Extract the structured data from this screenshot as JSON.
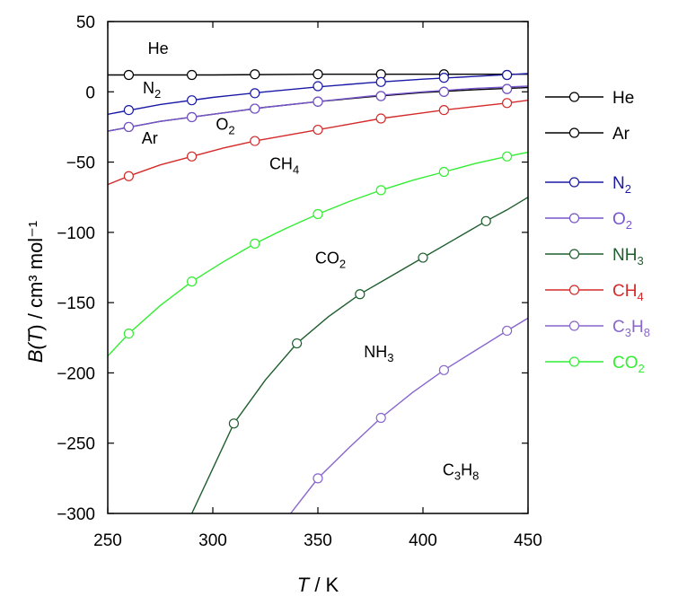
{
  "chart_data": {
    "type": "line",
    "xlabel": {
      "italic": "T",
      "rest": " / K"
    },
    "ylabel": {
      "italic_b": "B(",
      "italic_t": "T",
      "rest": ") / cm³ mol⁻¹"
    },
    "xlim": [
      250,
      450
    ],
    "ylim": [
      -300,
      50
    ],
    "xticks": [
      250,
      300,
      350,
      400,
      450
    ],
    "yticks": [
      -300,
      -250,
      -200,
      -150,
      -100,
      -50,
      0,
      50
    ],
    "grid": false,
    "legend_position": "right",
    "series": [
      {
        "key": "He",
        "name": "He",
        "color": "#000000",
        "x": [
          260,
          290,
          320,
          350,
          380,
          410,
          440
        ],
        "y": [
          12,
          12,
          12.5,
          12.5,
          12.5,
          12.5,
          12
        ]
      },
      {
        "key": "Ar",
        "name": "Ar",
        "color": "#000000",
        "x": [
          260,
          290,
          320,
          350,
          380,
          410,
          440
        ],
        "y": [
          -25,
          -18,
          -12,
          -7,
          -3,
          0,
          2
        ]
      },
      {
        "key": "N2",
        "name": "N",
        "sub": "2",
        "color": "#1a1aa6",
        "x": [
          260,
          290,
          320,
          350,
          380,
          410,
          440
        ],
        "y": [
          -13,
          -6,
          -1,
          4,
          7,
          10,
          12
        ]
      },
      {
        "key": "O2",
        "name": "O",
        "sub": "2",
        "color": "#7755cc",
        "x": [
          260,
          290,
          320,
          350,
          380,
          410,
          440
        ],
        "y": [
          -25,
          -18,
          -12,
          -7,
          -3,
          0,
          2
        ]
      },
      {
        "key": "NH3",
        "name": "NH",
        "sub": "3",
        "color": "#1e5e2e",
        "x": [
          310,
          340,
          370,
          400,
          430
        ],
        "y": [
          -236,
          -179,
          -144,
          -118,
          -92
        ]
      },
      {
        "key": "CH4",
        "name": "CH",
        "sub": "4",
        "color": "#d42a2a",
        "x": [
          260,
          290,
          320,
          350,
          380,
          410,
          440
        ],
        "y": [
          -60,
          -46,
          -35,
          -27,
          -19,
          -13,
          -8
        ]
      },
      {
        "key": "C3H8",
        "name": "C",
        "sub": "3",
        "name2": "H",
        "sub2": "8",
        "color": "#8866cc",
        "x": [
          350,
          380,
          410,
          440
        ],
        "y": [
          -275,
          -232,
          -198,
          -170
        ]
      },
      {
        "key": "CO2",
        "name": "CO",
        "sub": "2",
        "color": "#33ee33",
        "x": [
          260,
          290,
          320,
          350,
          380,
          410,
          440
        ],
        "y": [
          -172,
          -135,
          -108,
          -87,
          -70,
          -57,
          -46
        ]
      }
    ],
    "curves": {
      "He": [
        [
          250,
          12
        ],
        [
          300,
          12
        ],
        [
          350,
          12.5
        ],
        [
          400,
          12.5
        ],
        [
          450,
          12.5
        ]
      ],
      "Ar": [
        [
          250,
          -28
        ],
        [
          275,
          -21
        ],
        [
          300,
          -16
        ],
        [
          325,
          -11
        ],
        [
          350,
          -7
        ],
        [
          375,
          -3.5
        ],
        [
          400,
          -0.5
        ],
        [
          425,
          1.5
        ],
        [
          450,
          3
        ]
      ],
      "N2": [
        [
          250,
          -16
        ],
        [
          275,
          -9
        ],
        [
          300,
          -4
        ],
        [
          325,
          0
        ],
        [
          350,
          3.5
        ],
        [
          375,
          6.5
        ],
        [
          400,
          9
        ],
        [
          425,
          11
        ],
        [
          450,
          13
        ]
      ],
      "O2": [
        [
          250,
          -28
        ],
        [
          275,
          -21
        ],
        [
          300,
          -16
        ],
        [
          325,
          -11
        ],
        [
          350,
          -7
        ],
        [
          375,
          -3
        ],
        [
          400,
          0
        ],
        [
          425,
          2.5
        ],
        [
          450,
          4
        ]
      ],
      "NH3": [
        [
          290,
          -300
        ],
        [
          300,
          -268
        ],
        [
          310,
          -236
        ],
        [
          325,
          -205
        ],
        [
          340,
          -179
        ],
        [
          355,
          -160
        ],
        [
          370,
          -144
        ],
        [
          385,
          -131
        ],
        [
          400,
          -118
        ],
        [
          415,
          -105
        ],
        [
          430,
          -92
        ],
        [
          440,
          -84
        ],
        [
          450,
          -75
        ]
      ],
      "CH4": [
        [
          250,
          -66
        ],
        [
          260,
          -60
        ],
        [
          275,
          -52
        ],
        [
          290,
          -46
        ],
        [
          305,
          -40
        ],
        [
          320,
          -35
        ],
        [
          335,
          -31
        ],
        [
          350,
          -27
        ],
        [
          365,
          -23
        ],
        [
          380,
          -19
        ],
        [
          395,
          -16
        ],
        [
          410,
          -13
        ],
        [
          425,
          -10.5
        ],
        [
          440,
          -8
        ],
        [
          450,
          -6
        ]
      ],
      "C3H8": [
        [
          337,
          -300
        ],
        [
          350,
          -275
        ],
        [
          365,
          -253
        ],
        [
          380,
          -232
        ],
        [
          395,
          -214
        ],
        [
          410,
          -198
        ],
        [
          425,
          -184
        ],
        [
          440,
          -170
        ],
        [
          450,
          -161
        ]
      ],
      "CO2": [
        [
          250,
          -188
        ],
        [
          260,
          -172
        ],
        [
          275,
          -152
        ],
        [
          290,
          -135
        ],
        [
          305,
          -121
        ],
        [
          320,
          -108
        ],
        [
          335,
          -97
        ],
        [
          350,
          -87
        ],
        [
          365,
          -78
        ],
        [
          380,
          -70
        ],
        [
          395,
          -63
        ],
        [
          410,
          -57
        ],
        [
          425,
          -51
        ],
        [
          440,
          -46
        ],
        [
          450,
          -43
        ]
      ]
    },
    "annotations": [
      {
        "series": "He",
        "x": 274,
        "y": 27
      },
      {
        "series": "N2",
        "x": 271,
        "y": -1
      },
      {
        "series": "O2",
        "x": 306,
        "y": -27
      },
      {
        "series": "Ar",
        "x": 270,
        "y": -37
      },
      {
        "series": "CH4",
        "x": 334,
        "y": -55
      },
      {
        "series": "CO2",
        "x": 356,
        "y": -122
      },
      {
        "series": "NH3",
        "x": 379,
        "y": -189
      },
      {
        "series": "C3H8",
        "x": 418,
        "y": -273
      }
    ],
    "legend": [
      {
        "series": "He"
      },
      {
        "series": "Ar"
      },
      {
        "gap": true
      },
      {
        "series": "N2"
      },
      {
        "series": "O2"
      },
      {
        "series": "NH3"
      },
      {
        "series": "CH4"
      },
      {
        "series": "C3H8"
      },
      {
        "series": "CO2"
      }
    ]
  }
}
